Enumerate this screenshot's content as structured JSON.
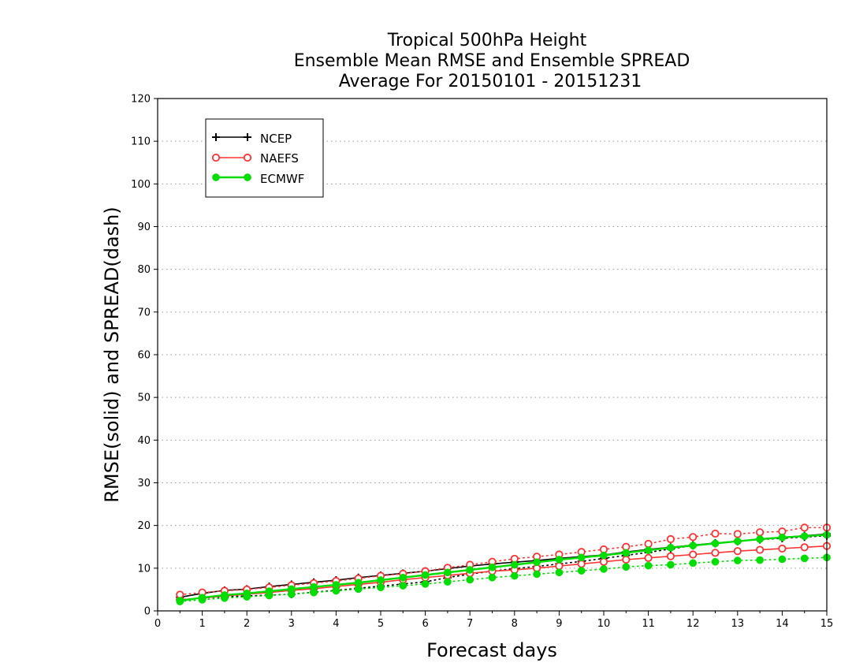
{
  "chart_data": {
    "type": "line",
    "title": [
      "Tropical 500hPa Height",
      "Ensemble Mean RMSE and Ensemble SPREAD",
      "Average For 20150101 - 20151231"
    ],
    "xlabel": "Forecast days",
    "ylabel": "RMSE(solid) and SPREAD(dash)",
    "xlim": [
      0,
      15
    ],
    "ylim": [
      0,
      120
    ],
    "xticks": [
      0,
      1,
      2,
      3,
      4,
      5,
      6,
      7,
      8,
      9,
      10,
      11,
      12,
      13,
      14,
      15
    ],
    "yticks": [
      0,
      10,
      20,
      30,
      40,
      50,
      60,
      70,
      80,
      90,
      100,
      110,
      120
    ],
    "grid": "horizontal dotted",
    "legend_position": "top-left",
    "x": [
      0.5,
      1,
      1.5,
      2,
      2.5,
      3,
      3.5,
      4,
      4.5,
      5,
      5.5,
      6,
      6.5,
      7,
      7.5,
      8,
      8.5,
      9,
      9.5,
      10,
      10.5,
      11,
      11.5,
      12,
      12.5,
      13,
      13.5,
      14,
      14.5,
      15
    ],
    "series": [
      {
        "name": "NCEP",
        "marker": "plus",
        "color": "#000000",
        "rmse": [
          3.2,
          4.1,
          4.8,
          5.1,
          5.7,
          6.2,
          6.7,
          7.2,
          7.8,
          8.3,
          8.8,
          9.3,
          9.9,
          10.5,
          11.0,
          11.4,
          11.8,
          12.3,
          12.7,
          13.1,
          13.8,
          14.4,
          14.9,
          15.4,
          15.9,
          16.3,
          16.8,
          17.2,
          17.6,
          18.0
        ],
        "spread": [
          2.6,
          3.0,
          3.3,
          3.5,
          3.7,
          3.9,
          4.4,
          4.8,
          5.3,
          5.8,
          6.3,
          6.8,
          7.8,
          8.6,
          9.3,
          9.9,
          10.4,
          11.0,
          11.6,
          12.3,
          13.0,
          13.7,
          14.5,
          15.3,
          15.8,
          16.3,
          16.7,
          17.0,
          17.3,
          17.6
        ]
      },
      {
        "name": "NAEFS",
        "marker": "open-circle",
        "color": "#ff3333",
        "rmse": [
          2.6,
          3.0,
          3.5,
          3.9,
          4.3,
          4.8,
          5.2,
          5.7,
          6.2,
          6.7,
          7.3,
          7.8,
          8.3,
          8.8,
          9.3,
          9.6,
          10.0,
          10.5,
          11.0,
          11.5,
          12.0,
          12.4,
          12.8,
          13.2,
          13.6,
          14.0,
          14.3,
          14.6,
          14.9,
          15.2
        ],
        "spread": [
          3.8,
          4.3,
          4.7,
          5.0,
          5.5,
          6.0,
          6.5,
          7.0,
          7.6,
          8.2,
          8.7,
          9.3,
          10.1,
          10.8,
          11.5,
          12.2,
          12.7,
          13.2,
          13.8,
          14.4,
          15.0,
          15.7,
          16.8,
          17.3,
          18.1,
          18.0,
          18.4,
          18.6,
          19.5,
          19.5
        ]
      },
      {
        "name": "ECMWF",
        "marker": "filled-circle",
        "color": "#00dd00",
        "rmse": [
          2.4,
          3.1,
          3.7,
          4.1,
          4.6,
          5.1,
          5.6,
          6.1,
          6.6,
          7.2,
          7.8,
          8.4,
          9.0,
          9.6,
          10.2,
          10.8,
          11.4,
          12.0,
          12.5,
          13.0,
          13.6,
          14.2,
          14.8,
          15.3,
          15.8,
          16.3,
          16.8,
          17.2,
          17.5,
          17.8
        ],
        "spread": [
          2.2,
          2.6,
          3.0,
          3.3,
          3.6,
          3.9,
          4.3,
          4.7,
          5.1,
          5.5,
          5.9,
          6.3,
          6.8,
          7.3,
          7.8,
          8.2,
          8.6,
          9.0,
          9.4,
          9.8,
          10.3,
          10.6,
          10.8,
          11.2,
          11.5,
          11.8,
          11.9,
          12.1,
          12.3,
          12.5
        ]
      }
    ]
  }
}
